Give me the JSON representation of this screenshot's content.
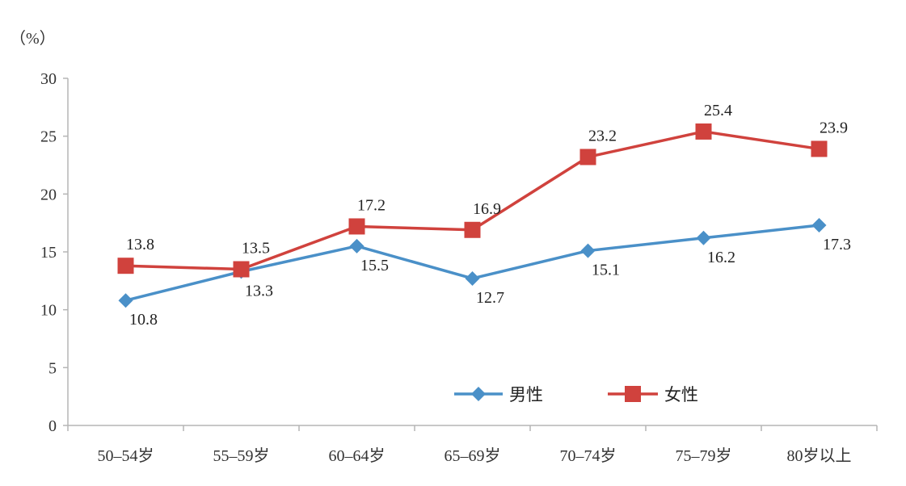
{
  "chart_data": {
    "type": "line",
    "title": "",
    "ylabel": "",
    "unit_label": "（%）",
    "categories": [
      "50–54岁",
      "55–59岁",
      "60–64岁",
      "65–69岁",
      "70–74岁",
      "75–79岁",
      "80岁以上"
    ],
    "ylim": [
      0,
      30
    ],
    "yticks": [
      0,
      5,
      10,
      15,
      20,
      25,
      30
    ],
    "grid": false,
    "legend_position": "bottom-right-inside",
    "series": [
      {
        "name": "男性",
        "color": "#4A90C8",
        "marker": "diamond",
        "values": [
          10.8,
          13.3,
          15.5,
          12.7,
          15.1,
          16.2,
          17.3
        ],
        "labels": [
          "10.8",
          "13.3",
          "15.5",
          "12.7",
          "15.1",
          "16.2",
          "17.3"
        ]
      },
      {
        "name": "女性",
        "color": "#D0423D",
        "marker": "square",
        "values": [
          13.8,
          13.5,
          17.2,
          16.9,
          23.2,
          25.4,
          23.9
        ],
        "labels": [
          "13.8",
          "13.5",
          "17.2",
          "16.9",
          "23.2",
          "25.4",
          "23.9"
        ]
      }
    ]
  }
}
